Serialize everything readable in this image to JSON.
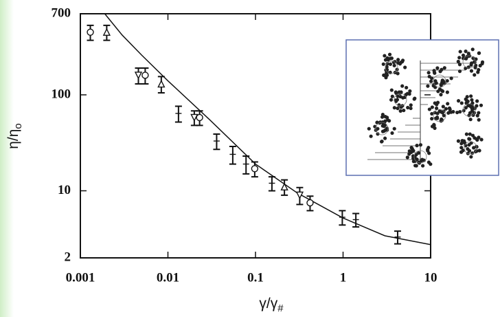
{
  "chart_data": {
    "type": "scatter",
    "xlabel": {
      "main": "γ/γ",
      "sub": "#"
    },
    "ylabel": {
      "main": "η/η",
      "sub": "o"
    },
    "log_x": true,
    "log_y": true,
    "xlim": [
      0.001,
      10
    ],
    "xticks": [
      0.001,
      0.01,
      0.1,
      1,
      10
    ],
    "ylim": [
      2,
      700
    ],
    "yticks": [
      2,
      10,
      100,
      700
    ],
    "color": "#111111",
    "x": [
      0.0013,
      0.002,
      0.0046,
      0.0055,
      0.0084,
      0.0132,
      0.02,
      0.023,
      0.036,
      0.055,
      0.078,
      0.098,
      0.154,
      0.214,
      0.32,
      0.42,
      0.98,
      1.4,
      4.2
    ],
    "values": [
      450,
      450,
      160,
      160,
      130,
      64,
      58,
      58,
      33,
      24,
      19,
      17,
      12,
      11,
      9,
      7.5,
      5.3,
      5,
      3.3
    ],
    "errors": [
      80,
      80,
      30,
      30,
      25,
      12,
      10,
      10,
      6,
      5,
      4,
      3,
      2,
      2,
      1.8,
      1.3,
      0.9,
      0.8,
      0.5
    ],
    "markers": [
      "o",
      "^",
      "v",
      "o",
      "^",
      "+",
      "v",
      "o",
      "+",
      "+",
      "+",
      "o",
      "+",
      "^",
      "v",
      "o",
      "+",
      "+",
      "+"
    ],
    "curve": {
      "x": [
        0.0019,
        0.003,
        0.005,
        0.01,
        0.03,
        0.1,
        0.3,
        1,
        3,
        10
      ],
      "y": [
        700,
        420,
        260,
        140,
        55,
        19,
        9.5,
        5.2,
        3.4,
        2.75
      ]
    }
  }
}
